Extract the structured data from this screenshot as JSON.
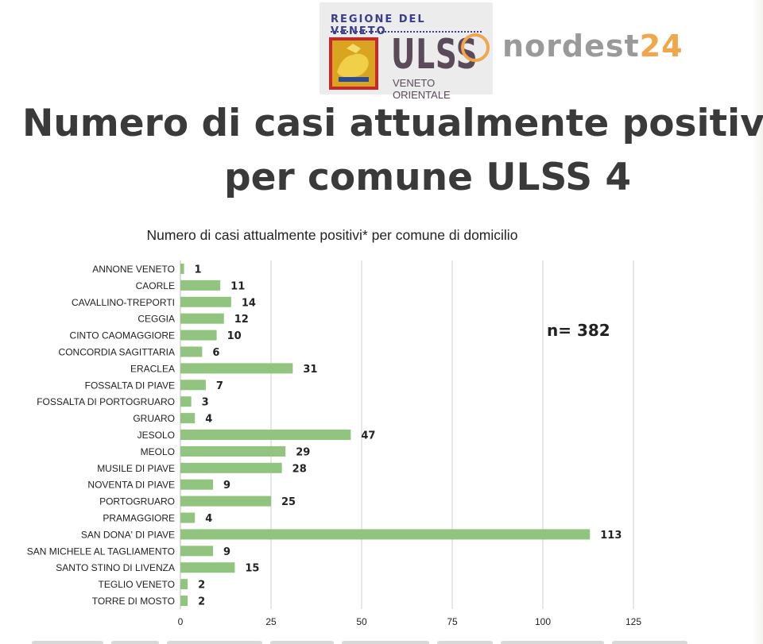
{
  "header": {
    "region_text": "REGIONE DEL VENETO",
    "ulss_text": "ULSS",
    "ulss_number": "4",
    "ulss_subtitle": "VENETO ORIENTALE",
    "brand_word": "nordest",
    "brand_number": "24"
  },
  "page_title": {
    "line1": "Numero di casi attualmente positivi",
    "line2": "per comune ULSS 4"
  },
  "colors": {
    "bar": "#90c47f",
    "grid": "#cfcfcf",
    "text": "#222222",
    "title": "#3a3a3a",
    "brand_orange": "#f0a64a",
    "logo_blue": "#3a3d8f"
  },
  "chart_data": {
    "type": "bar",
    "orientation": "horizontal",
    "title": "Numero di casi attualmente positivi* per comune di domicilio",
    "annotation": "n= 382",
    "xlim": [
      0,
      125
    ],
    "xticks": [
      0,
      25,
      50,
      75,
      100,
      125
    ],
    "grid": true,
    "categories": [
      "ANNONE VENETO",
      "CAORLE",
      "CAVALLINO-TREPORTI",
      "CEGGIA",
      "CINTO CAOMAGGIORE",
      "CONCORDIA SAGITTARIA",
      "ERACLEA",
      "FOSSALTA DI PIAVE",
      "FOSSALTA DI PORTOGRUARO",
      "GRUARO",
      "JESOLO",
      "MEOLO",
      "MUSILE DI PIAVE",
      "NOVENTA DI PIAVE",
      "PORTOGRUARO",
      "PRAMAGGIORE",
      "SAN DONA' DI PIAVE",
      "SAN MICHELE AL TAGLIAMENTO",
      "SANTO STINO DI LIVENZA",
      "TEGLIO VENETO",
      "TORRE DI MOSTO"
    ],
    "values": [
      1,
      11,
      14,
      12,
      10,
      6,
      31,
      7,
      3,
      4,
      47,
      29,
      28,
      9,
      25,
      4,
      113,
      9,
      15,
      2,
      2
    ]
  }
}
